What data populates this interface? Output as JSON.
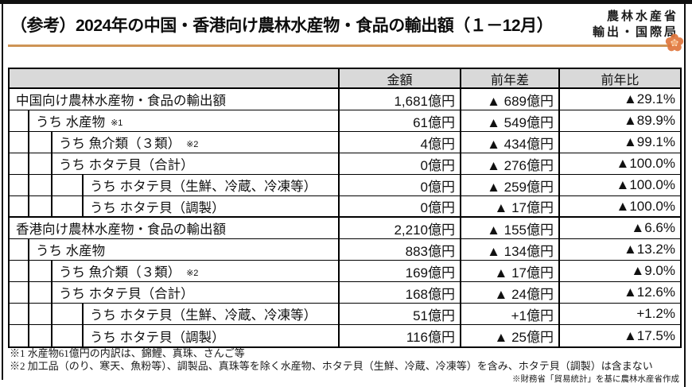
{
  "page": {
    "title": "（参考）2024年の中国・香港向け農林水産物・食品の輸出額（１－12月）",
    "agency_line1": "農林水産省",
    "agency_line2": "輸出・国際局",
    "accent_color": "#CE9455",
    "header_bg_color": "#D9D9D9",
    "flower_icon": "plum-blossom"
  },
  "table": {
    "headers": [
      "金額",
      "前年差",
      "前年比"
    ],
    "rows": [
      {
        "label": "中国向け農林水産物・食品の輸出額",
        "note": "",
        "indent": 0,
        "amount": "1,681億円",
        "diff": "▲ 689億円",
        "ratio": "▲29.1%"
      },
      {
        "label": "うち 水産物",
        "note": "※1",
        "indent": 1,
        "amount": "61億円",
        "diff": "▲ 549億円",
        "ratio": "▲89.9%"
      },
      {
        "label": "うち 魚介類（３類）",
        "note": "※2",
        "indent": 2,
        "amount": "4億円",
        "diff": "▲ 434億円",
        "ratio": "▲99.1%"
      },
      {
        "label": "うち ホタテ貝（合計）",
        "note": "",
        "indent": 2,
        "amount": "0億円",
        "diff": "▲ 276億円",
        "ratio": "▲100.0%"
      },
      {
        "label": "うち ホタテ貝（生鮮、冷蔵、冷凍等）",
        "note": "",
        "indent": 3,
        "amount": "0億円",
        "diff": "▲ 259億円",
        "ratio": "▲100.0%"
      },
      {
        "label": "うち ホタテ貝（調製）",
        "note": "",
        "indent": 3,
        "amount": "0億円",
        "diff": "▲ 17億円",
        "ratio": "▲100.0%"
      },
      {
        "label": "香港向け農林水産物・食品の輸出額",
        "note": "",
        "indent": 0,
        "amount": "2,210億円",
        "diff": "▲ 155億円",
        "ratio": "▲6.6%"
      },
      {
        "label": "うち 水産物",
        "note": "",
        "indent": 1,
        "amount": "883億円",
        "diff": "▲ 134億円",
        "ratio": "▲13.2%"
      },
      {
        "label": "うち 魚介類（３類）",
        "note": "※2",
        "indent": 2,
        "amount": "169億円",
        "diff": "▲ 17億円",
        "ratio": "▲9.0%"
      },
      {
        "label": "うち ホタテ貝（合計）",
        "note": "",
        "indent": 2,
        "amount": "168億円",
        "diff": "▲ 24億円",
        "ratio": "▲12.6%"
      },
      {
        "label": "うち ホタテ貝（生鮮、冷蔵、冷凍等）",
        "note": "",
        "indent": 3,
        "amount": "51億円",
        "diff": "+1億円",
        "ratio": "+1.2%"
      },
      {
        "label": "うち ホタテ貝（調製）",
        "note": "",
        "indent": 3,
        "amount": "116億円",
        "diff": "▲ 25億円",
        "ratio": "▲17.5%"
      }
    ]
  },
  "footnotes": {
    "note1": "※1 水産物61億円の内訳は、錦鯉、真珠、さんご等",
    "note2": "※2 加工品（のり、寒天、魚粉等）、調製品、真珠等を除く水産物、ホタテ貝（生鮮、冷蔵、冷凍等）を含み、ホタテ貝（調製）は含まない",
    "source": "※財務省「貿易統計」を基に農林水産省作成"
  }
}
